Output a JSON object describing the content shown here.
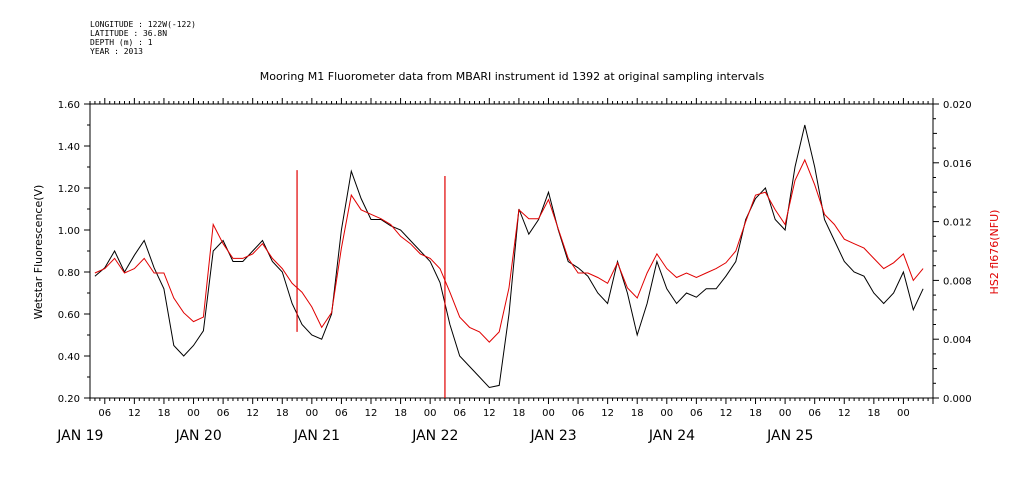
{
  "header": {
    "longitude": "LONGITUDE : 122W(-122)",
    "latitude": "LATITUDE : 36.8N",
    "depth": "DEPTH (m) : 1",
    "year": "YEAR : 2013"
  },
  "chart_data": {
    "type": "line",
    "title": "Mooring M1 Fluorometer data from MBARI instrument id 1392 at original sampling intervals",
    "ylabel_left": "Wetstar Fluorescence(V)",
    "ylabel_right": "HS2 fl676(NFU)",
    "y_left_range": [
      0.2,
      1.6
    ],
    "y_right_range": [
      0.0,
      0.02
    ],
    "y_left_ticks": [
      "0.20",
      "0.40",
      "0.60",
      "0.80",
      "1.00",
      "1.20",
      "1.40",
      "1.60"
    ],
    "y_right_ticks": [
      "0.000",
      "0.004",
      "0.008",
      "0.012",
      "0.016",
      "0.020"
    ],
    "x_range_hours": [
      -9,
      162
    ],
    "x_hour_ticks": [
      "06",
      "12",
      "18",
      "00",
      "06",
      "12",
      "18",
      "00",
      "06",
      "12",
      "18",
      "00",
      "06",
      "12",
      "18",
      "00",
      "06",
      "12",
      "18",
      "00",
      "06",
      "12",
      "18",
      "00",
      "06",
      "12",
      "18",
      "00"
    ],
    "x_day_labels": [
      "JAN 19",
      "JAN 20",
      "JAN 21",
      "JAN 22",
      "JAN 23",
      "JAN 24",
      "JAN 25"
    ],
    "series": [
      {
        "name": "Wetstar Fluorescence(V)",
        "axis": "left",
        "color": "#000000",
        "x": [
          -8,
          -6,
          -4,
          -2,
          0,
          2,
          4,
          6,
          8,
          10,
          12,
          14,
          16,
          18,
          20,
          22,
          24,
          26,
          28,
          30,
          32,
          34,
          36,
          38,
          40,
          42,
          44,
          46,
          48,
          50,
          52,
          54,
          56,
          58,
          60,
          62,
          64,
          66,
          68,
          70,
          72,
          74,
          76,
          78,
          80,
          82,
          84,
          86,
          88,
          90,
          92,
          94,
          96,
          98,
          100,
          102,
          104,
          106,
          108,
          110,
          112,
          114,
          116,
          118,
          120,
          122,
          124,
          126,
          128,
          130,
          132,
          134,
          136,
          138,
          140,
          142,
          144,
          146,
          148,
          150,
          152,
          154,
          156,
          158,
          160
        ],
        "y": [
          0.78,
          0.82,
          0.9,
          0.8,
          0.88,
          0.95,
          0.82,
          0.72,
          0.45,
          0.4,
          0.45,
          0.52,
          0.9,
          0.95,
          0.85,
          0.85,
          0.9,
          0.95,
          0.85,
          0.8,
          0.65,
          0.55,
          0.5,
          0.48,
          0.6,
          1.0,
          1.28,
          1.15,
          1.05,
          1.05,
          1.02,
          1.0,
          0.95,
          0.9,
          0.85,
          0.75,
          0.55,
          0.4,
          0.35,
          0.3,
          0.25,
          0.26,
          0.6,
          1.1,
          0.98,
          1.05,
          1.18,
          1.0,
          0.85,
          0.82,
          0.78,
          0.7,
          0.65,
          0.85,
          0.7,
          0.5,
          0.65,
          0.85,
          0.72,
          0.65,
          0.7,
          0.68,
          0.72,
          0.72,
          0.78,
          0.85,
          1.05,
          1.15,
          1.2,
          1.05,
          1.0,
          1.3,
          1.5,
          1.3,
          1.05,
          0.95,
          0.85,
          0.8,
          0.78,
          0.7,
          0.65,
          0.7,
          0.8,
          0.62,
          0.72
        ]
      },
      {
        "name": "HS2 fl676(NFU)",
        "axis": "right",
        "color": "#e00000",
        "x": [
          -8,
          -6,
          -4,
          -2,
          0,
          2,
          4,
          6,
          8,
          10,
          12,
          14,
          16,
          18,
          20,
          22,
          24,
          26,
          28,
          30,
          32,
          34,
          36,
          38,
          40,
          42,
          44,
          46,
          48,
          50,
          52,
          54,
          56,
          58,
          60,
          62,
          64,
          66,
          68,
          70,
          72,
          74,
          76,
          78,
          80,
          82,
          84,
          86,
          88,
          90,
          92,
          94,
          96,
          98,
          100,
          102,
          104,
          106,
          108,
          110,
          112,
          114,
          116,
          118,
          120,
          122,
          124,
          126,
          128,
          130,
          132,
          134,
          136,
          138,
          140,
          142,
          144,
          146,
          148,
          150,
          152,
          154,
          156,
          158,
          160
        ],
        "y": [
          0.0085,
          0.0088,
          0.0095,
          0.0085,
          0.0088,
          0.0095,
          0.0085,
          0.0085,
          0.0068,
          0.0058,
          0.0052,
          0.0055,
          0.0118,
          0.0105,
          0.0095,
          0.0095,
          0.0098,
          0.0105,
          0.0095,
          0.0088,
          0.0078,
          0.0072,
          0.0062,
          0.0048,
          0.0058,
          0.0102,
          0.0138,
          0.0128,
          0.0125,
          0.0122,
          0.0118,
          0.011,
          0.0105,
          0.0098,
          0.0095,
          0.0088,
          0.0072,
          0.0055,
          0.0048,
          0.0045,
          0.0038,
          0.0045,
          0.0075,
          0.0128,
          0.0122,
          0.0122,
          0.0135,
          0.0115,
          0.0095,
          0.0085,
          0.0085,
          0.0082,
          0.0078,
          0.0092,
          0.0075,
          0.0068,
          0.0085,
          0.0098,
          0.0088,
          0.0082,
          0.0085,
          0.0082,
          0.0085,
          0.0088,
          0.0092,
          0.01,
          0.012,
          0.0138,
          0.014,
          0.0128,
          0.0118,
          0.0148,
          0.0162,
          0.0145,
          0.0125,
          0.0118,
          0.0108,
          0.0105,
          0.0102,
          0.0095,
          0.0088,
          0.0092,
          0.0098,
          0.008,
          0.0088
        ]
      }
    ],
    "spikes": [
      {
        "series": "HS2 fl676(NFU)",
        "x": 33,
        "y_low": 0.0045,
        "y_high": 0.0155
      },
      {
        "series": "HS2 fl676(NFU)",
        "x": 63,
        "y_low": 0.0,
        "y_high": 0.0151
      }
    ],
    "grid": false,
    "legend": "none"
  }
}
